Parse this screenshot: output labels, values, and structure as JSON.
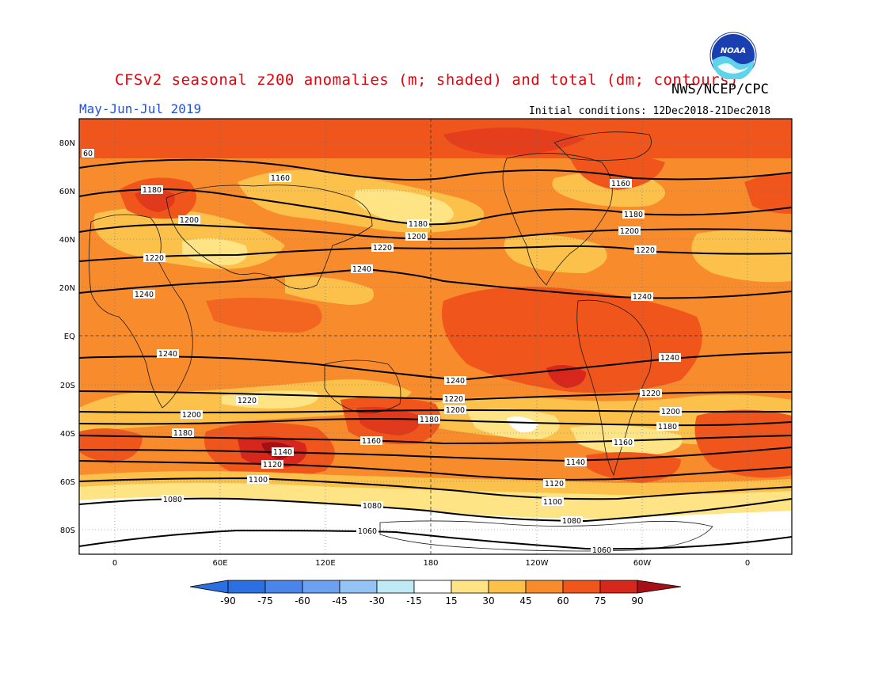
{
  "header": {
    "title": "CFSv2 seasonal z200 anomalies (m; shaded) and total (dm; contours)",
    "agency": "NWS/NCEP/CPC",
    "period": "May-Jun-Jul 2019",
    "initial_conditions": "Initial conditions: 12Dec2018-21Dec2018",
    "logo_text": "NOAA"
  },
  "axes": {
    "lat_labels": [
      "80N",
      "60N",
      "40N",
      "20N",
      "EQ",
      "20S",
      "40S",
      "60S",
      "80S"
    ],
    "lon_labels": [
      "0",
      "60E",
      "120E",
      "180",
      "120W",
      "60W",
      "0"
    ]
  },
  "colorbar": {
    "labels": [
      "-90",
      "-75",
      "-60",
      "-45",
      "-30",
      "-15",
      "15",
      "30",
      "45",
      "60",
      "75",
      "90"
    ],
    "colors": [
      "#2b6fe0",
      "#2b6fe0",
      "#4a86ea",
      "#6ba1f0",
      "#96c3f5",
      "#bfeaf5",
      "#ffffff",
      "#ffe485",
      "#fcc14a",
      "#f88c2c",
      "#f0561c",
      "#d7261c",
      "#a50f15"
    ]
  },
  "contours": [
    {
      "label": "60"
    },
    {
      "label": "1160"
    },
    {
      "label": "1180"
    },
    {
      "label": "1200"
    },
    {
      "label": "1220"
    },
    {
      "label": "1240"
    },
    {
      "label": "1240"
    },
    {
      "label": "1220"
    },
    {
      "label": "1200"
    },
    {
      "label": "1180"
    },
    {
      "label": "1160"
    },
    {
      "label": "1140"
    },
    {
      "label": "1120"
    },
    {
      "label": "1100"
    },
    {
      "label": "1080"
    },
    {
      "label": "1060"
    }
  ]
}
